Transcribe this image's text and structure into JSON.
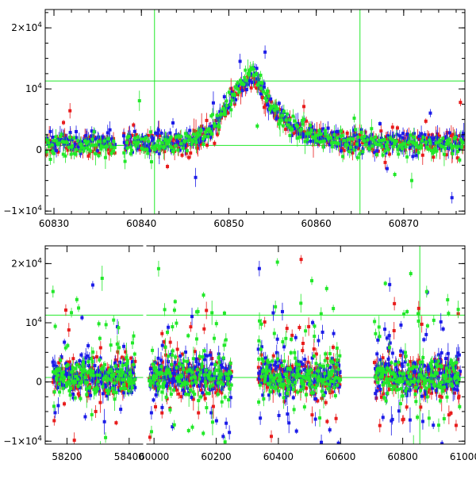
{
  "colors": {
    "red": "#e81c1c",
    "blue": "#1c1ce8",
    "green": "#22e82a",
    "ref_line": "#22e82a",
    "axis": "#000000"
  },
  "chart_data": [
    {
      "type": "scatter",
      "name": "top-light-curve-zoom",
      "xlim": [
        60829,
        60877
      ],
      "ylim": [
        -10500,
        23000
      ],
      "x_ticks": [
        60830,
        60840,
        60850,
        60860,
        60870
      ],
      "x_tick_labels": [
        "60830",
        "60840",
        "60850",
        "60860",
        "60870"
      ],
      "y_ticks": [
        -10000,
        0,
        10000,
        20000
      ],
      "y_tick_labels": [
        {
          "text": "−1×10",
          "exp": "4"
        },
        {
          "text": "0",
          "exp": ""
        },
        {
          "text": "10",
          "exp": "4"
        },
        {
          "text": "2×10",
          "exp": "4"
        }
      ],
      "hlines": [
        750,
        11300
      ],
      "vlines": [
        60841.5,
        60865
      ],
      "series": [
        {
          "name": "red",
          "segments": [
            [
              60829,
              60837
            ],
            [
              60838,
              60877
            ]
          ],
          "base": 1100
        },
        {
          "name": "blue",
          "segments": [
            [
              60829,
              60837
            ],
            [
              60838,
              60877
            ]
          ],
          "base": 1300
        },
        {
          "name": "green",
          "segments": [
            [
              60829,
              60837
            ],
            [
              60838,
              60877
            ]
          ],
          "base": 800
        }
      ],
      "peak": {
        "x": 60853,
        "height": 11000,
        "rise": 4.0,
        "decay": 3.2
      },
      "xlabel": "",
      "ylabel": ""
    },
    {
      "type": "scatter",
      "name": "bottom-light-curve-full",
      "xlim": [
        58130,
        61000
      ],
      "ylim": [
        -10500,
        23000
      ],
      "x_ticks": [
        58200,
        58400,
        60000,
        60200,
        60400,
        60600,
        60800,
        61000
      ],
      "x_tick_labels": [
        "58200",
        "58400",
        "60000",
        "60200",
        "60400",
        "60600",
        "60800",
        "61000"
      ],
      "y_ticks": [
        -10000,
        0,
        10000,
        20000
      ],
      "y_tick_labels": [
        {
          "text": "−1×10",
          "exp": "4"
        },
        {
          "text": "0",
          "exp": ""
        },
        {
          "text": "10",
          "exp": "4"
        },
        {
          "text": "2×10",
          "exp": "4"
        }
      ],
      "hlines": [
        750,
        11300
      ],
      "vlines": [
        60855
      ],
      "axis_break": {
        "gap_ms": 5,
        "before": 58440,
        "after": 59960
      },
      "segments_ms": [
        [
          58155,
          58420
        ],
        [
          59985,
          60250
        ],
        [
          60335,
          60600
        ],
        [
          60710,
          60985
        ]
      ],
      "series": [
        {
          "name": "red",
          "base": 900
        },
        {
          "name": "blue",
          "base": 1100
        },
        {
          "name": "green",
          "base": 800
        }
      ],
      "xlabel": "",
      "ylabel": ""
    }
  ]
}
